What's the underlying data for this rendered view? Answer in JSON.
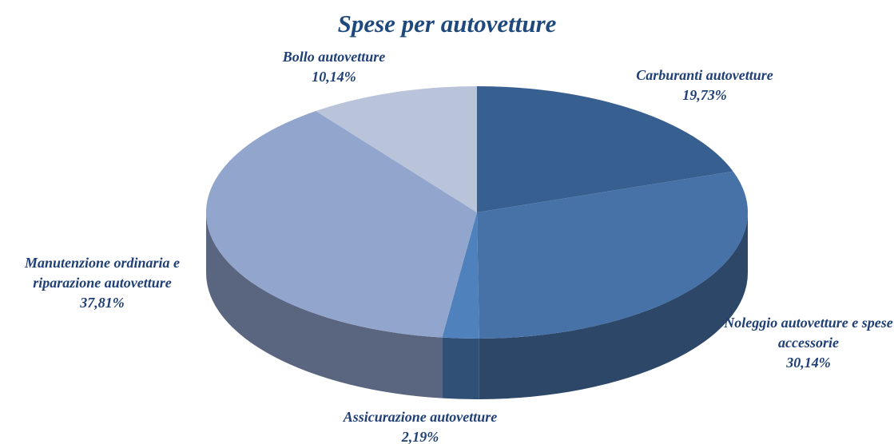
{
  "chart_data": {
    "type": "pie3d",
    "title": "Spese per autovetture",
    "categories": [
      "Carburanti autovetture",
      "Noleggio autovetture e spese accessorie",
      "Assicurazione autovetture",
      "Manutenzione ordinaria e riparazione autovetture",
      "Bollo autovetture"
    ],
    "values": [
      19.73,
      30.14,
      2.19,
      37.81,
      10.14
    ],
    "value_labels": [
      "19,73%",
      "30,14%",
      "2,19%",
      "37,81%",
      "10,14%"
    ],
    "colors": [
      "#375f90",
      "#4772a8",
      "#4f81bd",
      "#91a5cd",
      "#b9c4db"
    ]
  }
}
